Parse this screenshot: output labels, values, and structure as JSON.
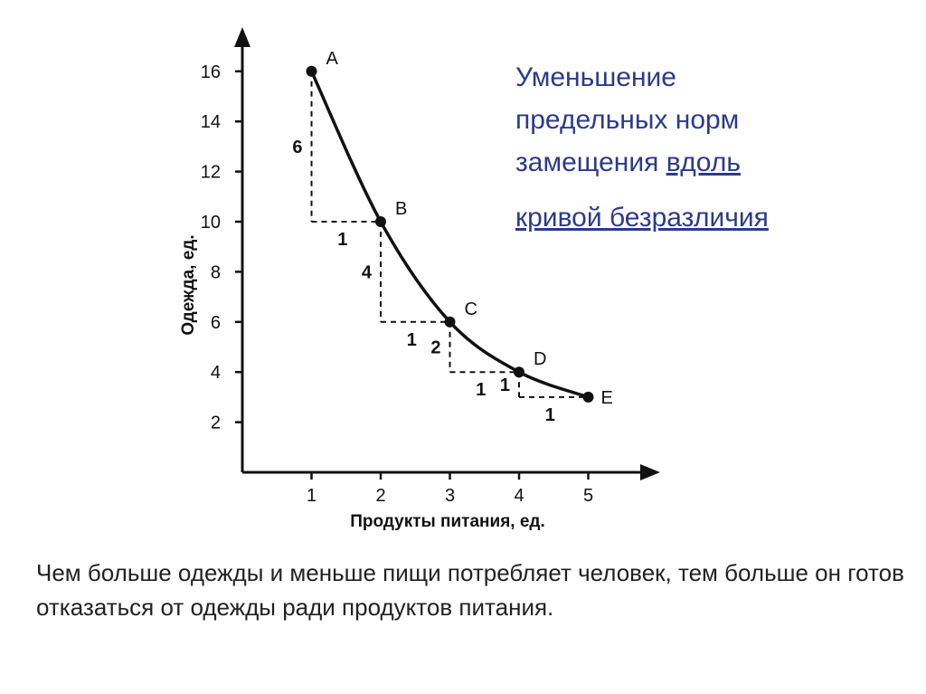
{
  "heading": {
    "line1": "Уменьшение",
    "line2": "предельных норм",
    "line3a": "замещения ",
    "line3b": "вдоль",
    "line4": "кривой безразличия"
  },
  "caption": "Чем больше одежды и меньше пищи потребляет человек, тем больше он готов отказаться от одежды ради продуктов питания.",
  "chart_data": {
    "type": "line",
    "title": "",
    "xlabel": "Продукты питания, ед.",
    "ylabel": "Одежда, ед.",
    "xlim": [
      0,
      5.6
    ],
    "ylim": [
      0,
      17.5
    ],
    "xticks": [
      1,
      2,
      3,
      4,
      5
    ],
    "yticks": [
      2,
      4,
      6,
      8,
      10,
      12,
      14,
      16
    ],
    "grid": false,
    "points": [
      {
        "label": "A",
        "x": 1,
        "y": 16
      },
      {
        "label": "B",
        "x": 2,
        "y": 10
      },
      {
        "label": "C",
        "x": 3,
        "y": 6
      },
      {
        "label": "D",
        "x": 4,
        "y": 4
      },
      {
        "label": "E",
        "x": 5,
        "y": 3
      }
    ],
    "steps": [
      {
        "dy": "6",
        "dx": "1"
      },
      {
        "dy": "4",
        "dx": "1"
      },
      {
        "dy": "2",
        "dx": "1"
      },
      {
        "dy": "1",
        "dx": "1"
      }
    ]
  }
}
